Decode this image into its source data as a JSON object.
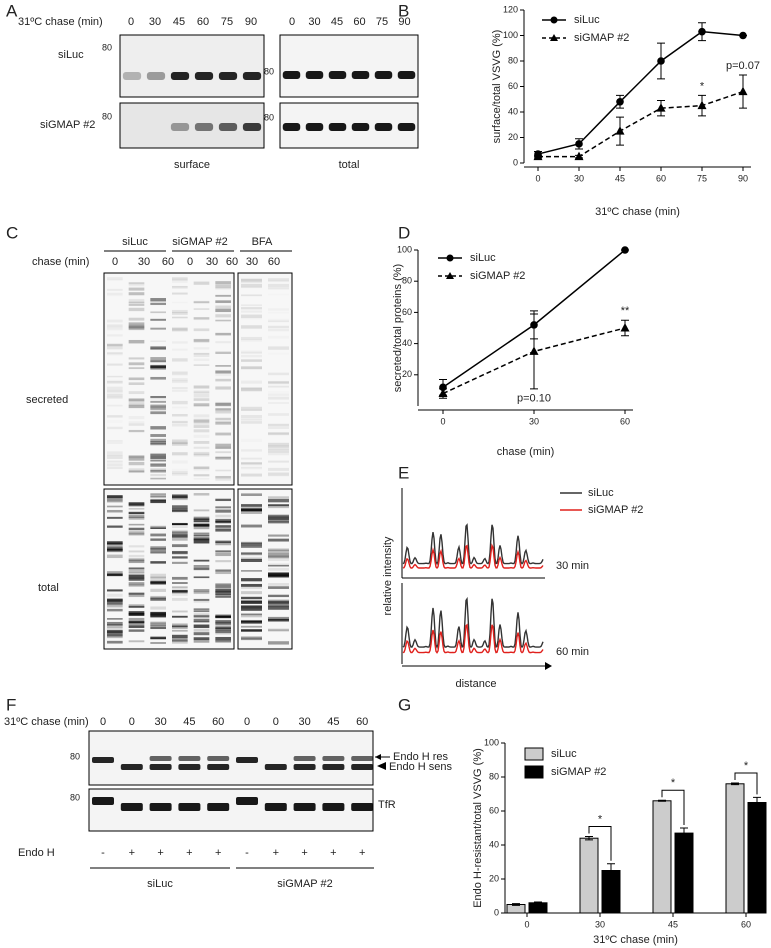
{
  "panels": [
    "A",
    "B",
    "C",
    "D",
    "E",
    "F",
    "G"
  ],
  "blot_a": {
    "chase_label": "31ºC chase (min)",
    "lanes": [
      "0",
      "30",
      "45",
      "60",
      "75",
      "90"
    ],
    "rows": [
      "siLuc",
      "siGMAP #2"
    ],
    "marker": "80",
    "captions": [
      "surface",
      "total"
    ]
  },
  "blot_c": {
    "chase_label": "chase (min)",
    "groups": [
      "siLuc",
      "siGMAP #2",
      "BFA"
    ],
    "lanes": [
      "0",
      "30",
      "60",
      "0",
      "30",
      "60",
      "30",
      "60"
    ],
    "rows": [
      "secreted",
      "total"
    ]
  },
  "profile_e": {
    "legend": [
      "siLuc",
      "siGMAP #2"
    ],
    "y_label": "relative intensity",
    "x_label": "distance",
    "times": [
      "30 min",
      "60 min"
    ]
  },
  "blot_f": {
    "chase_label": "31ºC chase (min)",
    "lanes": [
      "0",
      "0",
      "30",
      "45",
      "60",
      "0",
      "0",
      "30",
      "45",
      "60"
    ],
    "endo_label": "Endo H",
    "endo": [
      "-",
      "+",
      "+",
      "+",
      "+",
      "-",
      "+",
      "+",
      "+",
      "+"
    ],
    "groups": [
      "siLuc",
      "siGMAP #2"
    ],
    "marker": "80",
    "labels": [
      "Endo H res",
      "Endo H sens",
      "TfR"
    ]
  },
  "chart_data": [
    {
      "type": "line",
      "x_label": "31ºC chase (min)",
      "y_label": "surface/total VSVG (%)",
      "categories": [
        "0",
        "30",
        "45",
        "60",
        "75",
        "90"
      ],
      "series": [
        {
          "name": "siLuc",
          "color": "#000000",
          "marker": "circle",
          "dashed": false,
          "values": [
            7,
            15,
            48,
            80,
            103,
            100
          ],
          "errors": [
            2,
            4,
            5,
            14,
            7,
            0
          ]
        },
        {
          "name": "siGMAP #2",
          "color": "#000000",
          "marker": "triangle",
          "dashed": true,
          "values": [
            5,
            5,
            25,
            43,
            45,
            56
          ],
          "errors": [
            1,
            1,
            11,
            6,
            8,
            13
          ]
        }
      ],
      "ylim": [
        0,
        120
      ],
      "yticks": [
        0,
        20,
        40,
        60,
        80,
        100,
        120
      ],
      "annotations": [
        {
          "text": "*",
          "x": "75"
        },
        {
          "text": "p=0.07",
          "x": "90"
        }
      ]
    },
    {
      "type": "line",
      "x_label": "chase (min)",
      "y_label": "secreted/total proteins (%)",
      "categories": [
        "0",
        "30",
        "60"
      ],
      "series": [
        {
          "name": "siLuc",
          "color": "#000000",
          "marker": "circle",
          "dashed": false,
          "values": [
            12,
            52,
            100
          ],
          "errors": [
            5,
            9,
            0
          ]
        },
        {
          "name": "siGMAP #2",
          "color": "#000000",
          "marker": "triangle",
          "dashed": true,
          "values": [
            8,
            35,
            50
          ],
          "errors": [
            3,
            24,
            5
          ]
        }
      ],
      "ylim": [
        0,
        100
      ],
      "yticks": [
        20,
        40,
        60,
        80,
        100
      ],
      "annotations": [
        {
          "text": "p=0.10",
          "x": "30"
        },
        {
          "text": "**",
          "x": "60"
        }
      ]
    },
    {
      "type": "bar",
      "x_label": "31ºC chase (min)",
      "y_label": "Endo H-resistant/total VSVG (%)",
      "categories": [
        "0",
        "30",
        "45",
        "60"
      ],
      "series": [
        {
          "name": "siLuc",
          "color": "#cccccc",
          "values": [
            5,
            44,
            66,
            76
          ],
          "errors": [
            0.5,
            1,
            0.3,
            0.5
          ]
        },
        {
          "name": "siGMAP #2",
          "color": "#000000",
          "values": [
            6,
            25,
            47,
            65
          ],
          "errors": [
            0.5,
            4,
            3,
            3
          ]
        }
      ],
      "ylim": [
        0,
        100
      ],
      "yticks": [
        0,
        20,
        40,
        60,
        80,
        100
      ],
      "annotations": [
        {
          "text": "*",
          "x": "30"
        },
        {
          "text": "*",
          "x": "45"
        },
        {
          "text": "*",
          "x": "60"
        }
      ]
    }
  ]
}
